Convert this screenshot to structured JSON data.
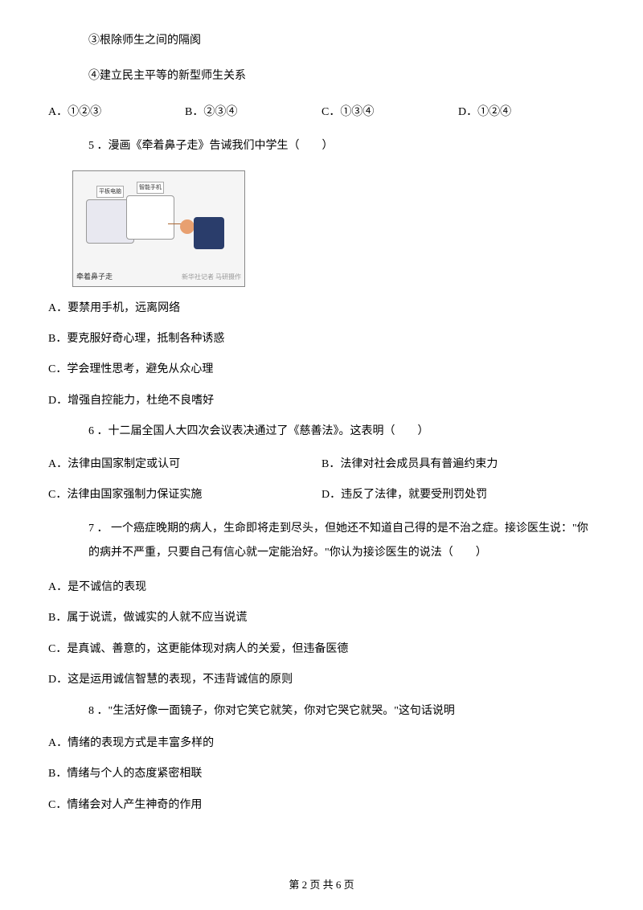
{
  "stmt3": "③根除师生之间的隔阂",
  "stmt4": "④建立民主平等的新型师生关系",
  "q4opts": {
    "a": "A．①②③",
    "b": "B．②③④",
    "c": "C．①③④",
    "d": "D．①②④"
  },
  "q5": {
    "stem": "5 ．漫画《牵着鼻子走》告诫我们中学生（　　）",
    "caption": "牵着鼻子走",
    "attrib": "新华社记者 马研摄作",
    "speech1": "平板电脑",
    "speech2": "智能手机",
    "a": "A．要禁用手机，远离网络",
    "b": "B．要克服好奇心理，抵制各种诱惑",
    "c": "C．学会理性思考，避免从众心理",
    "d": "D．增强自控能力，杜绝不良嗜好"
  },
  "q6": {
    "stem": "6 ．十二届全国人大四次会议表决通过了《慈善法》。这表明（　　）",
    "a": "A．法律由国家制定或认可",
    "b": "B．法律对社会成员具有普遍约束力",
    "c": "C．法律由国家强制力保证实施",
    "d": "D．违反了法律，就要受刑罚处罚"
  },
  "q7": {
    "stem": "7 ． 一个癌症晚期的病人，生命即将走到尽头，但她还不知道自己得的是不治之症。接诊医生说：\"你的病并不严重，只要自己有信心就一定能治好。\"你认为接诊医生的说法（　　）",
    "a": "A．是不诚信的表现",
    "b": "B．属于说谎，做诚实的人就不应当说谎",
    "c": "C．是真诚、善意的，这更能体现对病人的关爱，但违备医德",
    "d": "D．这是运用诚信智慧的表现，不违背诚信的原则"
  },
  "q8": {
    "stem": "8 ．\"生活好像一面镜子，你对它笑它就笑，你对它哭它就哭。\"这句话说明",
    "a": "A．情绪的表现方式是丰富多样的",
    "b": "B．情绪与个人的态度紧密相联",
    "c": "C．情绪会对人产生神奇的作用"
  },
  "footer": "第 2 页 共 6 页"
}
